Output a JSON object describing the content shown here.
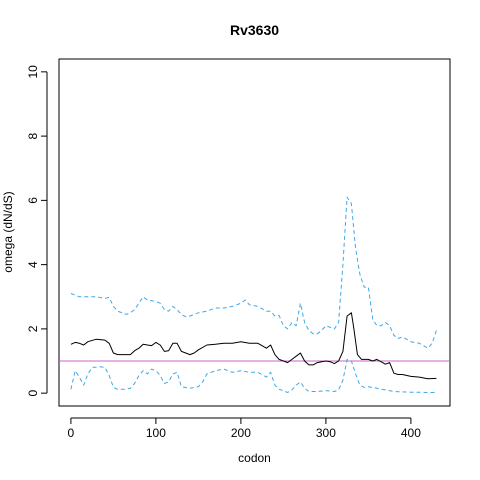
{
  "chart_data": {
    "type": "line",
    "title": "Rv3630",
    "xlabel": "codon",
    "ylabel": "omega (dN/dS)",
    "xlim": [
      -14,
      446
    ],
    "ylim": [
      -0.4,
      10.4
    ],
    "x_ticks": [
      0,
      100,
      200,
      300,
      400
    ],
    "y_ticks": [
      0,
      2,
      4,
      6,
      8,
      10
    ],
    "grid": false,
    "reference_line": {
      "y": 1,
      "color": "#cc66cc"
    },
    "series": [
      {
        "style": "solid",
        "color": "#000000",
        "points": [
          [
            0,
            1.52
          ],
          [
            5,
            1.58
          ],
          [
            10,
            1.55
          ],
          [
            15,
            1.5
          ],
          [
            20,
            1.6
          ],
          [
            30,
            1.68
          ],
          [
            40,
            1.65
          ],
          [
            45,
            1.55
          ],
          [
            50,
            1.25
          ],
          [
            55,
            1.2
          ],
          [
            65,
            1.2
          ],
          [
            70,
            1.2
          ],
          [
            75,
            1.32
          ],
          [
            80,
            1.4
          ],
          [
            85,
            1.52
          ],
          [
            90,
            1.5
          ],
          [
            95,
            1.48
          ],
          [
            100,
            1.58
          ],
          [
            105,
            1.5
          ],
          [
            110,
            1.3
          ],
          [
            115,
            1.32
          ],
          [
            120,
            1.55
          ],
          [
            125,
            1.55
          ],
          [
            130,
            1.3
          ],
          [
            135,
            1.25
          ],
          [
            140,
            1.2
          ],
          [
            145,
            1.25
          ],
          [
            150,
            1.35
          ],
          [
            160,
            1.5
          ],
          [
            170,
            1.52
          ],
          [
            180,
            1.55
          ],
          [
            190,
            1.55
          ],
          [
            200,
            1.6
          ],
          [
            210,
            1.55
          ],
          [
            220,
            1.55
          ],
          [
            230,
            1.4
          ],
          [
            235,
            1.5
          ],
          [
            240,
            1.2
          ],
          [
            245,
            1.05
          ],
          [
            250,
            1.0
          ],
          [
            255,
            0.95
          ],
          [
            260,
            1.05
          ],
          [
            265,
            1.15
          ],
          [
            270,
            1.25
          ],
          [
            275,
            1.0
          ],
          [
            280,
            0.88
          ],
          [
            285,
            0.88
          ],
          [
            290,
            0.95
          ],
          [
            295,
            0.98
          ],
          [
            300,
            1.0
          ],
          [
            305,
            0.98
          ],
          [
            310,
            0.92
          ],
          [
            315,
            1.0
          ],
          [
            320,
            1.3
          ],
          [
            325,
            2.4
          ],
          [
            330,
            2.5
          ],
          [
            333,
            2.0
          ],
          [
            337,
            1.2
          ],
          [
            342,
            1.05
          ],
          [
            350,
            1.05
          ],
          [
            355,
            1.0
          ],
          [
            360,
            1.05
          ],
          [
            370,
            0.9
          ],
          [
            375,
            0.95
          ],
          [
            380,
            0.62
          ],
          [
            385,
            0.58
          ],
          [
            390,
            0.58
          ],
          [
            400,
            0.52
          ],
          [
            410,
            0.5
          ],
          [
            420,
            0.45
          ],
          [
            430,
            0.46
          ]
        ]
      },
      {
        "style": "dashed",
        "color": "#3fa8e6",
        "points": [
          [
            0,
            3.1
          ],
          [
            5,
            3.05
          ],
          [
            10,
            3.0
          ],
          [
            20,
            3.0
          ],
          [
            30,
            3.0
          ],
          [
            40,
            2.95
          ],
          [
            45,
            2.98
          ],
          [
            50,
            2.7
          ],
          [
            55,
            2.55
          ],
          [
            65,
            2.45
          ],
          [
            70,
            2.5
          ],
          [
            75,
            2.6
          ],
          [
            80,
            2.8
          ],
          [
            85,
            3.0
          ],
          [
            90,
            2.9
          ],
          [
            95,
            2.88
          ],
          [
            100,
            2.85
          ],
          [
            105,
            2.8
          ],
          [
            110,
            2.6
          ],
          [
            115,
            2.55
          ],
          [
            120,
            2.7
          ],
          [
            125,
            2.6
          ],
          [
            130,
            2.45
          ],
          [
            135,
            2.38
          ],
          [
            140,
            2.4
          ],
          [
            150,
            2.5
          ],
          [
            160,
            2.55
          ],
          [
            170,
            2.65
          ],
          [
            180,
            2.65
          ],
          [
            190,
            2.7
          ],
          [
            200,
            2.8
          ],
          [
            205,
            2.9
          ],
          [
            210,
            2.75
          ],
          [
            220,
            2.7
          ],
          [
            230,
            2.55
          ],
          [
            235,
            2.55
          ],
          [
            240,
            2.4
          ],
          [
            245,
            2.42
          ],
          [
            250,
            2.1
          ],
          [
            255,
            2.0
          ],
          [
            260,
            2.2
          ],
          [
            265,
            2.1
          ],
          [
            270,
            2.8
          ],
          [
            275,
            2.2
          ],
          [
            280,
            1.95
          ],
          [
            285,
            1.85
          ],
          [
            290,
            1.85
          ],
          [
            295,
            1.95
          ],
          [
            300,
            2.1
          ],
          [
            305,
            2.05
          ],
          [
            310,
            2.0
          ],
          [
            315,
            2.2
          ],
          [
            320,
            4.0
          ],
          [
            325,
            6.1
          ],
          [
            330,
            5.9
          ],
          [
            335,
            4.5
          ],
          [
            340,
            3.7
          ],
          [
            345,
            3.3
          ],
          [
            350,
            3.3
          ],
          [
            355,
            2.3
          ],
          [
            360,
            2.1
          ],
          [
            365,
            2.1
          ],
          [
            370,
            2.2
          ],
          [
            375,
            2.1
          ],
          [
            380,
            1.8
          ],
          [
            385,
            1.7
          ],
          [
            390,
            1.75
          ],
          [
            400,
            1.6
          ],
          [
            410,
            1.55
          ],
          [
            420,
            1.4
          ],
          [
            425,
            1.55
          ],
          [
            430,
            1.95
          ]
        ]
      },
      {
        "style": "dashed",
        "color": "#3fa8e6",
        "points": [
          [
            0,
            0.12
          ],
          [
            5,
            0.7
          ],
          [
            10,
            0.5
          ],
          [
            15,
            0.25
          ],
          [
            20,
            0.6
          ],
          [
            25,
            0.8
          ],
          [
            35,
            0.82
          ],
          [
            40,
            0.8
          ],
          [
            45,
            0.55
          ],
          [
            50,
            0.18
          ],
          [
            55,
            0.12
          ],
          [
            65,
            0.12
          ],
          [
            70,
            0.15
          ],
          [
            75,
            0.3
          ],
          [
            80,
            0.55
          ],
          [
            85,
            0.7
          ],
          [
            90,
            0.6
          ],
          [
            95,
            0.75
          ],
          [
            100,
            0.7
          ],
          [
            105,
            0.55
          ],
          [
            110,
            0.3
          ],
          [
            115,
            0.35
          ],
          [
            120,
            0.6
          ],
          [
            125,
            0.65
          ],
          [
            130,
            0.2
          ],
          [
            140,
            0.15
          ],
          [
            150,
            0.2
          ],
          [
            155,
            0.35
          ],
          [
            160,
            0.6
          ],
          [
            170,
            0.7
          ],
          [
            180,
            0.75
          ],
          [
            190,
            0.65
          ],
          [
            200,
            0.7
          ],
          [
            210,
            0.65
          ],
          [
            220,
            0.65
          ],
          [
            230,
            0.5
          ],
          [
            235,
            0.65
          ],
          [
            240,
            0.25
          ],
          [
            245,
            0.12
          ],
          [
            250,
            0.08
          ],
          [
            255,
            0.02
          ],
          [
            260,
            0.1
          ],
          [
            265,
            0.25
          ],
          [
            270,
            0.35
          ],
          [
            275,
            0.15
          ],
          [
            280,
            0.05
          ],
          [
            290,
            0.05
          ],
          [
            300,
            0.08
          ],
          [
            310,
            0.05
          ],
          [
            315,
            0.1
          ],
          [
            320,
            0.4
          ],
          [
            325,
            1.05
          ],
          [
            330,
            1.0
          ],
          [
            335,
            0.6
          ],
          [
            340,
            0.25
          ],
          [
            345,
            0.18
          ],
          [
            350,
            0.2
          ],
          [
            360,
            0.15
          ],
          [
            370,
            0.1
          ],
          [
            380,
            0.05
          ],
          [
            390,
            0.04
          ],
          [
            400,
            0.03
          ],
          [
            410,
            0.03
          ],
          [
            420,
            0.02
          ],
          [
            430,
            0.02
          ]
        ]
      }
    ]
  }
}
